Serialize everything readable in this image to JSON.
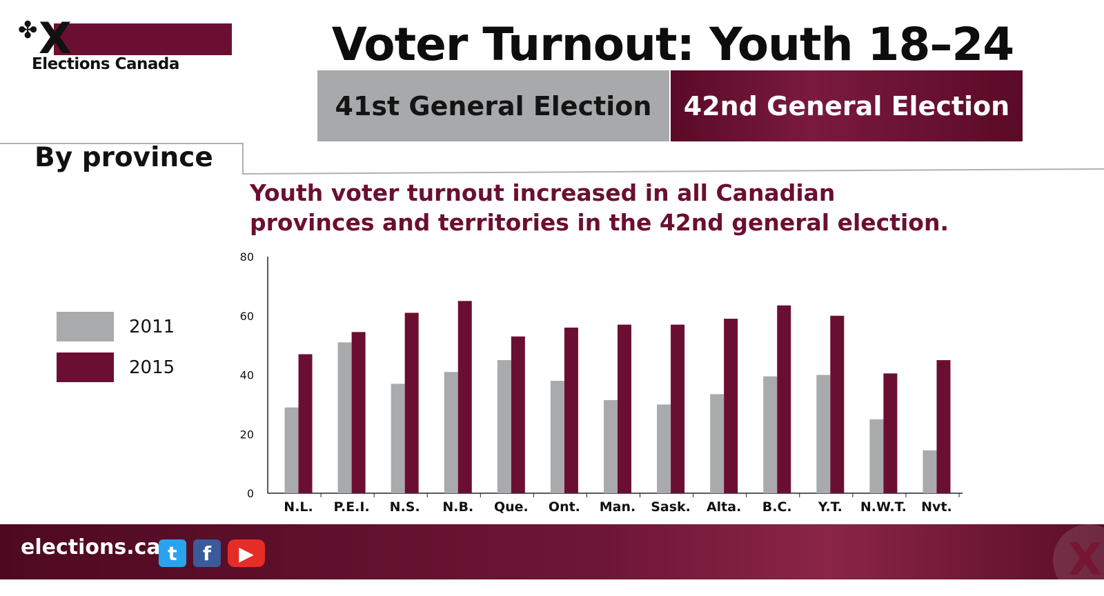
{
  "header": {
    "logo_text": "Elections Canada",
    "title": "Voter Turnout: Youth 18–24",
    "tabs": [
      {
        "label": "41st General Election",
        "active": false
      },
      {
        "label": "42nd General Election",
        "active": true
      }
    ]
  },
  "section": {
    "label": "By province",
    "headline_line1": "Youth voter turnout increased in all Canadian",
    "headline_line2": "provinces and territories in the 42nd general election."
  },
  "colors": {
    "series_2011": "#a9aaac",
    "series_2015": "#6b0f32",
    "brand": "#6b0f32"
  },
  "footer": {
    "url": "elections.ca",
    "icons": [
      "twitter-icon",
      "facebook-icon",
      "youtube-icon"
    ]
  },
  "chart_data": {
    "type": "bar",
    "title": "",
    "xlabel": "",
    "ylabel": "",
    "ylim": [
      0,
      80
    ],
    "yticks": [
      0,
      20,
      40,
      60,
      80
    ],
    "grid": false,
    "legend_position": "left",
    "categories": [
      "N.L.",
      "P.E.I.",
      "N.S.",
      "N.B.",
      "Que.",
      "Ont.",
      "Man.",
      "Sask.",
      "Alta.",
      "B.C.",
      "Y.T.",
      "N.W.T.",
      "Nvt."
    ],
    "series": [
      {
        "name": "2011",
        "color": "#a9aaac",
        "values": [
          29,
          51,
          37,
          41,
          45,
          38,
          31.5,
          30,
          33.5,
          39.5,
          40,
          25,
          14.5
        ]
      },
      {
        "name": "2015",
        "color": "#6b0f32",
        "values": [
          47,
          54.5,
          61,
          65,
          53,
          56,
          57,
          57,
          59,
          63.5,
          60,
          40.5,
          45
        ]
      }
    ]
  }
}
